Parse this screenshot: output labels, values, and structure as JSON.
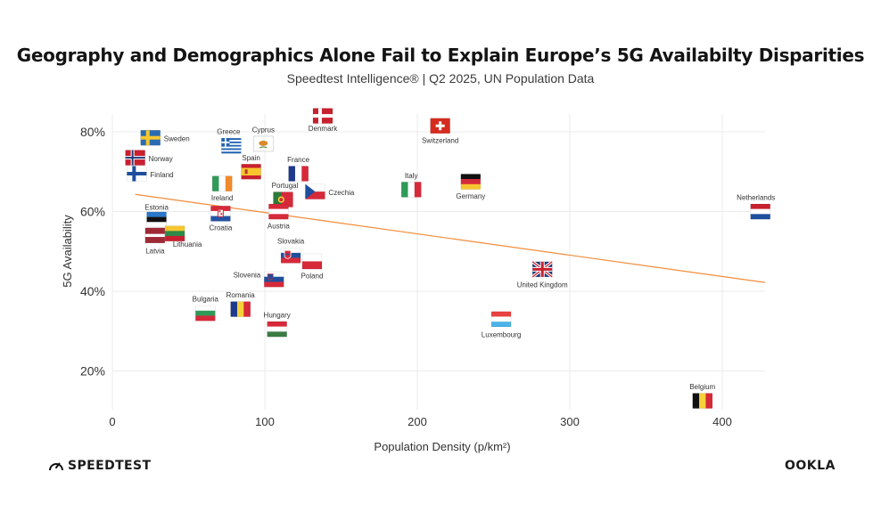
{
  "title": "Geography and Demographics Alone Fail to Explain Europe’s 5G Availabilty Disparities",
  "subtitle": "Speedtest Intelligence® | Q2 2025, UN Population Data",
  "brand_left": "SPEEDTEST",
  "brand_right": "OOKLA",
  "chart_data": {
    "type": "scatter",
    "xlabel": "Population Density (p/km²)",
    "ylabel": "5G Availability",
    "xlim": [
      0,
      430
    ],
    "ylim": [
      10,
      85
    ],
    "x_ticks": [
      0,
      100,
      200,
      300,
      400
    ],
    "x_tick_labels": [
      "0",
      "100",
      "200",
      "300",
      "400"
    ],
    "y_ticks": [
      20,
      40,
      60,
      80
    ],
    "y_tick_labels": [
      "20%",
      "40%",
      "60%",
      "80%"
    ],
    "grid": true,
    "trendline": {
      "color": "#f28c3a",
      "start": [
        15,
        64.3
      ],
      "end": [
        428,
        42.2
      ]
    },
    "points": [
      {
        "name": "Sweden",
        "x": 25,
        "y": 78.5,
        "flag": "sweden"
      },
      {
        "name": "Norway",
        "x": 15,
        "y": 73.5,
        "flag": "norway"
      },
      {
        "name": "Finland",
        "x": 16,
        "y": 69.5,
        "flag": "finland"
      },
      {
        "name": "Greece",
        "x": 78,
        "y": 76.5,
        "flag": "greece"
      },
      {
        "name": "Cyprus",
        "x": 99,
        "y": 77,
        "flag": "cyprus"
      },
      {
        "name": "Denmark",
        "x": 138,
        "y": 84,
        "flag": "denmark"
      },
      {
        "name": "Switzerland",
        "x": 215,
        "y": 81.5,
        "flag": "switzerland"
      },
      {
        "name": "Spain",
        "x": 91,
        "y": 70,
        "flag": "spain"
      },
      {
        "name": "France",
        "x": 122,
        "y": 69.5,
        "flag": "france"
      },
      {
        "name": "Ireland",
        "x": 72,
        "y": 67,
        "flag": "ireland"
      },
      {
        "name": "Czechia",
        "x": 133,
        "y": 65,
        "flag": "czechia"
      },
      {
        "name": "Portugal",
        "x": 112,
        "y": 63,
        "flag": "portugal"
      },
      {
        "name": "Italy",
        "x": 196,
        "y": 65.5,
        "flag": "italy"
      },
      {
        "name": "Germany",
        "x": 235,
        "y": 67.5,
        "flag": "germany"
      },
      {
        "name": "Netherlands",
        "x": 425,
        "y": 60,
        "flag": "netherlands"
      },
      {
        "name": "Estonia",
        "x": 29,
        "y": 58,
        "flag": "estonia"
      },
      {
        "name": "Croatia",
        "x": 71,
        "y": 59.5,
        "flag": "croatia"
      },
      {
        "name": "Austria",
        "x": 109,
        "y": 60,
        "flag": "austria"
      },
      {
        "name": "Latvia",
        "x": 28,
        "y": 54,
        "flag": "latvia"
      },
      {
        "name": "Lithuania",
        "x": 41,
        "y": 54.5,
        "flag": "lithuania"
      },
      {
        "name": "Slovakia",
        "x": 117,
        "y": 49,
        "flag": "slovakia"
      },
      {
        "name": "Poland",
        "x": 131,
        "y": 47.5,
        "flag": "poland"
      },
      {
        "name": "Slovenia",
        "x": 106,
        "y": 43,
        "flag": "slovenia"
      },
      {
        "name": "United Kingdom",
        "x": 282,
        "y": 45.5,
        "flag": "uk"
      },
      {
        "name": "Bulgaria",
        "x": 61,
        "y": 34.5,
        "flag": "bulgaria"
      },
      {
        "name": "Romania",
        "x": 84,
        "y": 35.5,
        "flag": "romania"
      },
      {
        "name": "Hungary",
        "x": 108,
        "y": 30.5,
        "flag": "hungary"
      },
      {
        "name": "Luxembourg",
        "x": 255,
        "y": 33,
        "flag": "luxembourg"
      },
      {
        "name": "Belgium",
        "x": 387,
        "y": 12.5,
        "flag": "belgium"
      }
    ]
  }
}
